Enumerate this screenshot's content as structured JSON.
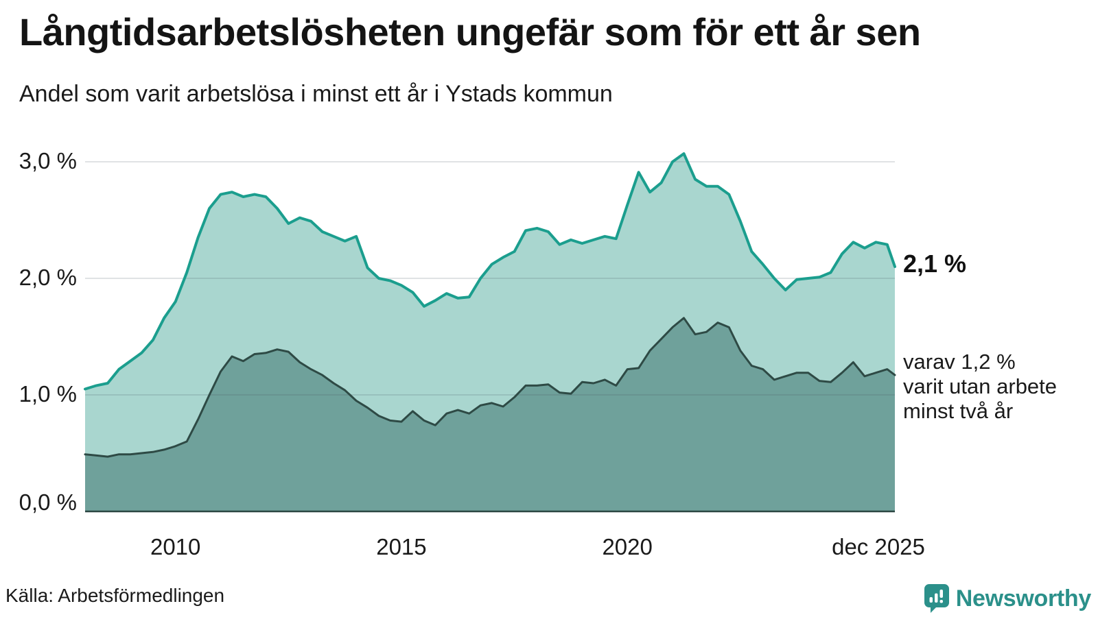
{
  "header": {
    "title": "Långtidsarbetslösheten ungefär som för ett år sen",
    "subtitle": "Andel som varit arbetslösa i minst ett år i Ystads kommun"
  },
  "chart_data": {
    "type": "area",
    "title": "Långtidsarbetslösheten ungefär som för ett år sen",
    "subtitle": "Andel som varit arbetslösa i minst ett år i Ystads kommun",
    "unit": "%",
    "grid": "horizontal",
    "legend_position": "none",
    "x_domain": [
      2008,
      2025.92
    ],
    "ylim": [
      0,
      3.2
    ],
    "x_ticks": [
      {
        "label": "2010",
        "x": 2010
      },
      {
        "label": "2015",
        "x": 2015
      },
      {
        "label": "2020",
        "x": 2020
      },
      {
        "label": "dec 2025",
        "x": 2025.92,
        "align": "end"
      }
    ],
    "y_ticks": [
      {
        "label": "0,0 %",
        "value": 0
      },
      {
        "label": "1,0 %",
        "value": 1
      },
      {
        "label": "2,0 %",
        "value": 2
      },
      {
        "label": "3,0 %",
        "value": 3
      }
    ],
    "x": [
      2008,
      2008.25,
      2008.5,
      2008.75,
      2009,
      2009.25,
      2009.5,
      2009.75,
      2010,
      2010.25,
      2010.5,
      2010.75,
      2011,
      2011.25,
      2011.5,
      2011.75,
      2012,
      2012.25,
      2012.5,
      2012.75,
      2013,
      2013.25,
      2013.5,
      2013.75,
      2014,
      2014.25,
      2014.5,
      2014.75,
      2015,
      2015.25,
      2015.5,
      2015.75,
      2016,
      2016.25,
      2016.5,
      2016.75,
      2017,
      2017.25,
      2017.5,
      2017.75,
      2018,
      2018.25,
      2018.5,
      2018.75,
      2019,
      2019.25,
      2019.5,
      2019.75,
      2020,
      2020.25,
      2020.5,
      2020.75,
      2021,
      2021.25,
      2021.5,
      2021.75,
      2022,
      2022.25,
      2022.5,
      2022.75,
      2023,
      2023.25,
      2023.5,
      2023.75,
      2024,
      2024.25,
      2024.5,
      2024.75,
      2025,
      2025.25,
      2025.5,
      2025.75,
      2025.92
    ],
    "series": [
      {
        "name": "arbetslösa minst ett år",
        "line_color": "#1b9e8e",
        "fill_color": "#a9d6cf",
        "line_width": 4,
        "values": [
          1.05,
          1.08,
          1.1,
          1.22,
          1.29,
          1.36,
          1.47,
          1.66,
          1.8,
          2.05,
          2.35,
          2.6,
          2.72,
          2.74,
          2.7,
          2.72,
          2.7,
          2.6,
          2.47,
          2.52,
          2.49,
          2.4,
          2.36,
          2.32,
          2.36,
          2.09,
          2.0,
          1.98,
          1.94,
          1.88,
          1.76,
          1.81,
          1.87,
          1.83,
          1.84,
          2.0,
          2.12,
          2.18,
          2.23,
          2.41,
          2.43,
          2.4,
          2.29,
          2.33,
          2.3,
          2.33,
          2.36,
          2.34,
          2.63,
          2.91,
          2.74,
          2.82,
          3.0,
          3.07,
          2.85,
          2.79,
          2.79,
          2.72,
          2.49,
          2.23,
          2.12,
          2.0,
          1.9,
          1.99,
          2.0,
          2.01,
          2.05,
          2.21,
          2.31,
          2.26,
          2.31,
          2.29,
          2.1
        ]
      },
      {
        "name": "varav arbetslösa minst två år",
        "line_color": "#2e4a45",
        "fill_color": "#6fa19b",
        "line_width": 3,
        "values": [
          0.49,
          0.48,
          0.47,
          0.49,
          0.49,
          0.5,
          0.51,
          0.53,
          0.56,
          0.6,
          0.79,
          1.0,
          1.2,
          1.33,
          1.29,
          1.35,
          1.36,
          1.39,
          1.37,
          1.28,
          1.22,
          1.17,
          1.1,
          1.04,
          0.95,
          0.89,
          0.82,
          0.78,
          0.77,
          0.86,
          0.78,
          0.74,
          0.84,
          0.87,
          0.84,
          0.91,
          0.93,
          0.9,
          0.98,
          1.08,
          1.08,
          1.09,
          1.02,
          1.01,
          1.11,
          1.1,
          1.13,
          1.08,
          1.22,
          1.23,
          1.38,
          1.48,
          1.58,
          1.66,
          1.52,
          1.54,
          1.62,
          1.58,
          1.38,
          1.25,
          1.22,
          1.13,
          1.16,
          1.19,
          1.19,
          1.12,
          1.11,
          1.19,
          1.28,
          1.16,
          1.19,
          1.22,
          1.17
        ]
      }
    ],
    "annotations": {
      "end_value": "2,1 %",
      "end_note": "varav 1,2 %\nvarit utan arbete\nminst två år"
    },
    "colors": {
      "grid": "#e3e5e8",
      "axis": "#2b4743"
    }
  },
  "footer": {
    "source": "Källa: Arbetsförmedlingen",
    "brand": "Newsworthy",
    "brand_color": "#2b908a"
  }
}
